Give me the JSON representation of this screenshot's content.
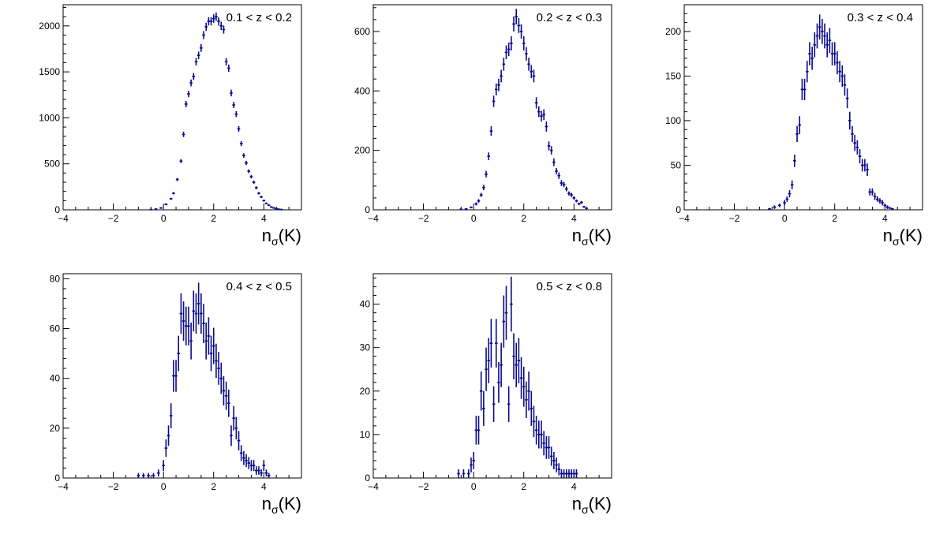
{
  "colors": {
    "marker": "#0a0a8c",
    "axis": "#000000"
  },
  "chart_data": [
    {
      "type": "scatter",
      "panel_label": "0.1 < z < 0.2",
      "xlabel_main": "n",
      "xlabel_sub": "σ",
      "xlabel_paren": "(K)",
      "xlim": [
        -4,
        5.5
      ],
      "ylim": [
        0,
        2230
      ],
      "xticks": [
        -4,
        -2,
        0,
        2,
        4
      ],
      "yticks": [
        0,
        500,
        1000,
        1500,
        2000
      ],
      "x": [
        -0.5,
        -0.3,
        -0.1,
        0.1,
        0.3,
        0.4,
        0.55,
        0.7,
        0.8,
        0.9,
        1.0,
        1.1,
        1.2,
        1.3,
        1.4,
        1.5,
        1.6,
        1.7,
        1.8,
        1.9,
        2.0,
        2.1,
        2.2,
        2.3,
        2.4,
        2.5,
        2.6,
        2.7,
        2.8,
        2.9,
        3.0,
        3.1,
        3.2,
        3.3,
        3.4,
        3.5,
        3.6,
        3.7,
        3.8,
        3.9,
        4.0,
        4.1,
        4.2,
        4.3,
        4.4,
        4.5,
        4.6,
        4.7
      ],
      "y": [
        3,
        8,
        20,
        60,
        120,
        180,
        330,
        530,
        820,
        1150,
        1260,
        1380,
        1450,
        1610,
        1680,
        1760,
        1900,
        1990,
        2050,
        2050,
        2080,
        2100,
        2050,
        2000,
        1960,
        1610,
        1540,
        1270,
        1140,
        1040,
        880,
        720,
        590,
        510,
        420,
        360,
        300,
        240,
        180,
        140,
        100,
        70,
        50,
        30,
        20,
        12,
        6,
        3
      ],
      "err": [
        2,
        3,
        5,
        8,
        11,
        13,
        18,
        23,
        29,
        34,
        35,
        37,
        38,
        40,
        41,
        42,
        44,
        45,
        45,
        45,
        46,
        46,
        45,
        45,
        44,
        40,
        39,
        36,
        34,
        32,
        30,
        27,
        24,
        23,
        20,
        19,
        17,
        15,
        13,
        12,
        10,
        8,
        7,
        5,
        4,
        3,
        2,
        2
      ]
    },
    {
      "type": "scatter",
      "panel_label": "0.2 < z < 0.3",
      "xlabel_main": "n",
      "xlabel_sub": "σ",
      "xlabel_paren": "(K)",
      "xlim": [
        -4,
        5.5
      ],
      "ylim": [
        0,
        690
      ],
      "xticks": [
        -4,
        -2,
        0,
        2,
        4
      ],
      "yticks": [
        0,
        200,
        400,
        600
      ],
      "x": [
        -0.5,
        -0.3,
        -0.1,
        0.1,
        0.2,
        0.3,
        0.4,
        0.5,
        0.6,
        0.7,
        0.8,
        0.9,
        1.0,
        1.1,
        1.2,
        1.3,
        1.4,
        1.5,
        1.6,
        1.7,
        1.8,
        1.9,
        2.0,
        2.1,
        2.2,
        2.3,
        2.4,
        2.5,
        2.6,
        2.7,
        2.8,
        2.9,
        3.0,
        3.1,
        3.2,
        3.3,
        3.4,
        3.5,
        3.6,
        3.7,
        3.8,
        3.9,
        4.0,
        4.1,
        4.2,
        4.3,
        4.4,
        4.5
      ],
      "y": [
        2,
        3,
        8,
        20,
        30,
        50,
        75,
        120,
        180,
        265,
        365,
        405,
        420,
        450,
        490,
        530,
        540,
        560,
        625,
        650,
        620,
        600,
        560,
        525,
        490,
        465,
        450,
        360,
        330,
        315,
        320,
        280,
        215,
        200,
        160,
        130,
        115,
        90,
        85,
        70,
        55,
        50,
        40,
        30,
        20,
        25,
        10,
        5
      ],
      "err": [
        1,
        2,
        3,
        5,
        6,
        7,
        9,
        11,
        13,
        16,
        19,
        20,
        21,
        21,
        22,
        23,
        23,
        24,
        25,
        26,
        25,
        24,
        24,
        23,
        22,
        22,
        21,
        19,
        18,
        18,
        18,
        17,
        15,
        14,
        13,
        11,
        11,
        10,
        9,
        8,
        7,
        7,
        6,
        5,
        4,
        5,
        3,
        2
      ]
    },
    {
      "type": "scatter",
      "panel_label": "0.3 < z < 0.4",
      "xlabel_main": "n",
      "xlabel_sub": "σ",
      "xlabel_paren": "(K)",
      "xlim": [
        -4,
        5.5
      ],
      "ylim": [
        0,
        230
      ],
      "xticks": [
        -4,
        -2,
        0,
        2,
        4
      ],
      "yticks": [
        0,
        50,
        100,
        150,
        200
      ],
      "x": [
        -0.6,
        -0.4,
        -0.2,
        0.0,
        0.1,
        0.2,
        0.3,
        0.4,
        0.5,
        0.6,
        0.7,
        0.8,
        0.9,
        1.0,
        1.1,
        1.2,
        1.3,
        1.4,
        1.5,
        1.6,
        1.7,
        1.8,
        1.9,
        2.0,
        2.1,
        2.2,
        2.3,
        2.4,
        2.5,
        2.6,
        2.7,
        2.8,
        2.9,
        3.0,
        3.1,
        3.2,
        3.3,
        3.4,
        3.5,
        3.6,
        3.7,
        3.8,
        3.9,
        4.0,
        4.1,
        4.2,
        4.3
      ],
      "y": [
        1,
        3,
        5,
        8,
        12,
        18,
        28,
        55,
        85,
        95,
        135,
        135,
        155,
        175,
        170,
        185,
        195,
        205,
        200,
        195,
        185,
        190,
        175,
        175,
        165,
        155,
        150,
        140,
        125,
        100,
        85,
        75,
        70,
        60,
        50,
        50,
        45,
        20,
        20,
        15,
        12,
        10,
        8,
        5,
        3,
        2,
        1
      ],
      "err": [
        1,
        2,
        2,
        3,
        3,
        4,
        5,
        7,
        9,
        10,
        12,
        12,
        12,
        13,
        13,
        14,
        14,
        14,
        14,
        14,
        14,
        14,
        13,
        13,
        13,
        12,
        12,
        12,
        11,
        10,
        9,
        9,
        8,
        8,
        7,
        7,
        7,
        4,
        4,
        4,
        3,
        3,
        3,
        2,
        2,
        1,
        1
      ]
    },
    {
      "type": "scatter",
      "panel_label": "0.4 < z < 0.5",
      "xlabel_main": "n",
      "xlabel_sub": "σ",
      "xlabel_paren": "(K)",
      "xlim": [
        -4,
        5.5
      ],
      "ylim": [
        0,
        82
      ],
      "xticks": [
        -4,
        -2,
        0,
        2,
        4
      ],
      "yticks": [
        0,
        20,
        40,
        60,
        80
      ],
      "x": [
        -1.0,
        -0.8,
        -0.6,
        -0.4,
        -0.2,
        0.0,
        0.1,
        0.2,
        0.3,
        0.4,
        0.5,
        0.6,
        0.7,
        0.8,
        0.9,
        1.0,
        1.1,
        1.2,
        1.3,
        1.4,
        1.5,
        1.6,
        1.7,
        1.8,
        1.9,
        2.0,
        2.1,
        2.2,
        2.3,
        2.4,
        2.5,
        2.6,
        2.7,
        2.8,
        2.9,
        3.0,
        3.1,
        3.2,
        3.3,
        3.4,
        3.5,
        3.6,
        3.7,
        3.8,
        3.9,
        4.0,
        4.1,
        4.2
      ],
      "y": [
        1,
        1,
        1,
        1,
        2,
        5,
        12,
        17,
        25,
        41,
        41,
        50,
        66,
        63,
        61,
        61,
        55,
        67,
        66,
        70,
        66,
        62,
        55,
        57,
        50,
        53,
        47,
        44,
        40,
        35,
        33,
        30,
        17,
        24,
        20,
        15,
        10,
        8,
        7,
        6,
        5,
        5,
        3,
        3,
        2,
        5,
        2,
        1
      ],
      "err": [
        1,
        1,
        1,
        1,
        1.4,
        2.2,
        3.5,
        4.1,
        5,
        6.4,
        6.4,
        7.1,
        8.1,
        7.9,
        7.8,
        7.8,
        7.4,
        8.2,
        8.1,
        8.4,
        8.1,
        7.9,
        7.4,
        7.5,
        7.1,
        7.3,
        6.9,
        6.6,
        6.3,
        5.9,
        5.7,
        5.5,
        4.1,
        4.9,
        4.5,
        3.9,
        3.2,
        2.8,
        2.6,
        2.4,
        2.2,
        2.2,
        1.7,
        1.7,
        1.4,
        2.2,
        1.4,
        1
      ]
    },
    {
      "type": "scatter",
      "panel_label": "0.5 < z < 0.8",
      "xlabel_main": "n",
      "xlabel_sub": "σ",
      "xlabel_paren": "(K)",
      "xlim": [
        -4,
        5.5
      ],
      "ylim": [
        0,
        47
      ],
      "xticks": [
        -4,
        -2,
        0,
        2,
        4
      ],
      "yticks": [
        0,
        10,
        20,
        30,
        40
      ],
      "x": [
        -0.6,
        -0.4,
        -0.2,
        -0.1,
        0.0,
        0.1,
        0.2,
        0.3,
        0.4,
        0.5,
        0.6,
        0.7,
        0.8,
        0.9,
        1.0,
        1.1,
        1.2,
        1.3,
        1.4,
        1.5,
        1.6,
        1.7,
        1.8,
        1.9,
        2.0,
        2.1,
        2.2,
        2.3,
        2.4,
        2.5,
        2.6,
        2.7,
        2.8,
        2.9,
        3.0,
        3.1,
        3.2,
        3.3,
        3.4,
        3.5,
        3.6,
        3.7,
        3.8,
        3.9,
        4.0,
        4.1
      ],
      "y": [
        1,
        1,
        1,
        3,
        4,
        11,
        11,
        20,
        16,
        25,
        27,
        31,
        17,
        31,
        22,
        26,
        36,
        38,
        17,
        40,
        28,
        26,
        27,
        23,
        21,
        18,
        20,
        16,
        13,
        11,
        10,
        10,
        8,
        7,
        7,
        5,
        4,
        3,
        2,
        1,
        1,
        1,
        1,
        1,
        1,
        1
      ],
      "err": [
        1,
        1,
        1,
        1.7,
        2,
        3.3,
        3.3,
        4.5,
        4,
        5,
        5.2,
        5.6,
        4.1,
        5.6,
        4.7,
        5.1,
        6,
        6.2,
        4.1,
        6.3,
        5.3,
        5.1,
        5.2,
        4.8,
        4.6,
        4.2,
        4.5,
        4,
        3.6,
        3.3,
        3.2,
        3.2,
        2.8,
        2.6,
        2.6,
        2.2,
        2,
        1.7,
        1.4,
        1,
        1,
        1,
        1,
        1,
        1,
        1
      ]
    }
  ]
}
